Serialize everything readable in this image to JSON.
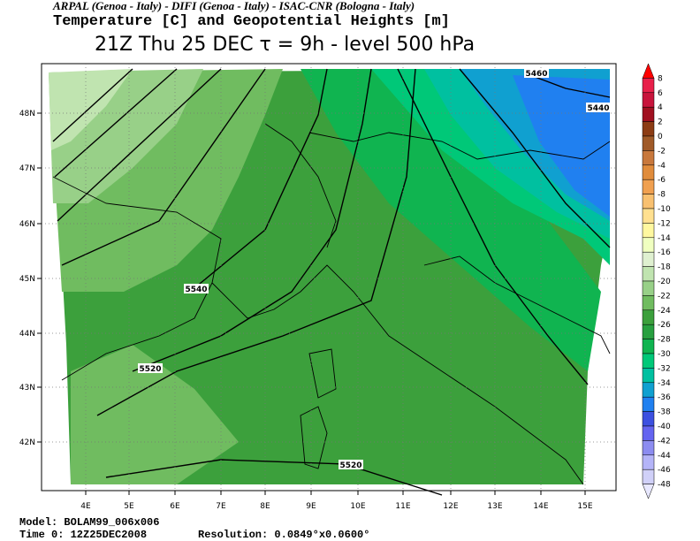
{
  "header": {
    "line1": "ARPAL (Genoa - Italy)  -  DIFI (Genoa - Italy)  -  ISAC-CNR (Bologna - Italy)",
    "line2": "Temperature [C] and Geopotential Heights [m]",
    "line3": "21Z Thu 25 DEC  τ = 9h  -  level 500 hPa"
  },
  "map": {
    "lon_labels": [
      "4E",
      "5E",
      "6E",
      "7E",
      "8E",
      "9E",
      "10E",
      "11E",
      "12E",
      "13E",
      "14E",
      "15E"
    ],
    "lat_labels": [
      "48N",
      "47N",
      "46N",
      "45N",
      "44N",
      "43N",
      "42N"
    ],
    "contour_labels": [
      "5460",
      "5440",
      "5540",
      "5520",
      "5520"
    ]
  },
  "colorbar": {
    "labels": [
      8,
      6,
      4,
      2,
      0,
      -2,
      -4,
      -6,
      -8,
      -10,
      -12,
      -14,
      -16,
      -18,
      -20,
      -22,
      -24,
      -26,
      -28,
      -30,
      -32,
      -34,
      -36,
      -38,
      -40,
      -42,
      -44,
      -46,
      -48
    ],
    "colors": [
      "#ff0000",
      "#e8204a",
      "#c8143c",
      "#a01020",
      "#8c3c14",
      "#a05a28",
      "#c8783c",
      "#e08c3c",
      "#f0a050",
      "#f8c070",
      "#ffe090",
      "#fff8a0",
      "#f0ffc0",
      "#dff0d0",
      "#c0e4b0",
      "#98d088",
      "#70bc60",
      "#3ca03c",
      "#28a040",
      "#10b450",
      "#00c878",
      "#00c0a0",
      "#10a0d0",
      "#2080f0",
      "#3c50e0",
      "#6464f0",
      "#8c8cf0",
      "#b4b4f8",
      "#d0d0f8",
      "#e8e8ff"
    ]
  },
  "footer": {
    "model": "Model: BOLAM99_006x006",
    "time": "Time 0: 12Z25DEC2008",
    "resolution": "Resolution: 0.0849°x0.0600°"
  }
}
